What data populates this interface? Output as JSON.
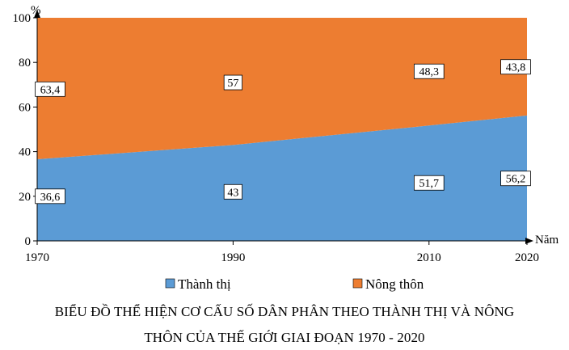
{
  "chart_data": {
    "type": "area",
    "stacked": true,
    "x": [
      "1970",
      "1990",
      "2010",
      "2020"
    ],
    "x_values": [
      1970,
      1990,
      2010,
      2020
    ],
    "series": [
      {
        "name": "Thành thị",
        "values": [
          36.6,
          43,
          51.7,
          56.2
        ],
        "labels": [
          "36,6",
          "43",
          "51,7",
          "56,2"
        ],
        "color": "#5b9bd5"
      },
      {
        "name": "Nông thôn",
        "values": [
          63.4,
          57,
          48.3,
          43.8
        ],
        "labels": [
          "63,4",
          "57",
          "48,3",
          "43,8"
        ],
        "color": "#ed7d31"
      }
    ],
    "ylim": [
      0,
      100
    ],
    "yticks": [
      0,
      20,
      40,
      60,
      80,
      100
    ],
    "ylabel": "%",
    "xlabel": "Năm",
    "grid": false,
    "legend_position": "bottom",
    "title": "BIỂU ĐỒ THỂ HIỆN CƠ CẤU SỐ DÂN PHÂN THEO THÀNH THỊ VÀ NÔNG THÔN CỦA THẾ GIỚI GIAI ĐOẠN 1970 - 2020",
    "title_lines": [
      "BIỂU ĐỒ THỂ HIỆN CƠ CẤU SỐ DÂN PHÂN THEO THÀNH THỊ VÀ NÔNG",
      "THÔN CỦA THẾ GIỚI GIAI ĐOẠN 1970 - 2020"
    ]
  }
}
